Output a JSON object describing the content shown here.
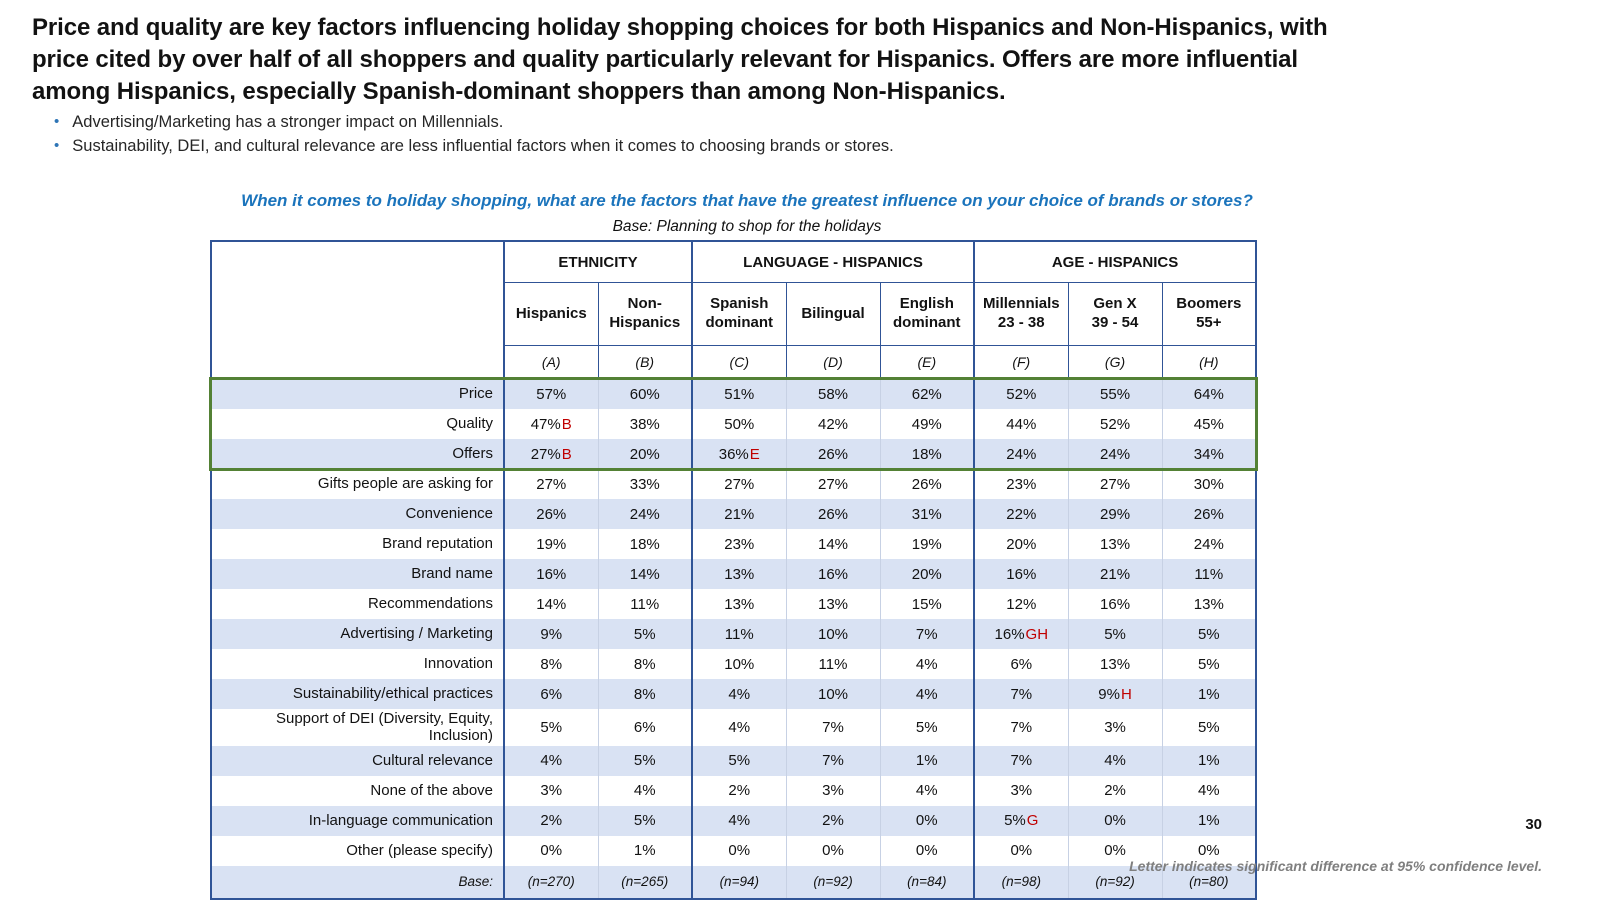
{
  "slide": {
    "title": "Price and quality are key factors influencing holiday shopping choices for both Hispanics and Non-Hispanics, with price cited by over half of all shoppers and quality particularly relevant for Hispanics. Offers are more influential among Hispanics, especially Spanish-dominant shoppers than among Non-Hispanics.",
    "bullets": [
      "Advertising/Marketing has a stronger impact on Millennials.",
      "Sustainability, DEI, and cultural relevance are less influential factors when it comes to choosing brands or stores."
    ],
    "question": "When it comes to holiday shopping, what are the factors that have the greatest influence on your choice of brands or stores?",
    "base_note": "Base: Planning to shop for the holidays",
    "page_number": "30",
    "footnote": "Letter indicates significant difference at 95% confidence level."
  },
  "colors": {
    "question_blue": "#1b74bc",
    "bullet_blue": "#2e75b6",
    "table_border_blue": "#305496",
    "row_stripe": "#d9e2f3",
    "highlight_green": "#538135",
    "sig_red": "#c00000"
  },
  "chart_data": {
    "type": "table",
    "title": "When it comes to holiday shopping, what are the factors that have the greatest influence on your choice of brands or stores?",
    "base": "Planning to shop for the holidays",
    "column_groups": [
      {
        "label": "ETHNICITY",
        "span": 2
      },
      {
        "label": "LANGUAGE - HISPANICS",
        "span": 3
      },
      {
        "label": "AGE - HISPANICS",
        "span": 3
      }
    ],
    "columns": [
      {
        "label": "Hispanics",
        "letter": "(A)"
      },
      {
        "label": "Non-\nHispanics",
        "letter": "(B)"
      },
      {
        "label": "Spanish\ndominant",
        "letter": "(C)"
      },
      {
        "label": "Bilingual",
        "letter": "(D)"
      },
      {
        "label": "English\ndominant",
        "letter": "(E)"
      },
      {
        "label": "Millennials\n23 - 38",
        "letter": "(F)"
      },
      {
        "label": "Gen X\n39 - 54",
        "letter": "(G)"
      },
      {
        "label": "Boomers\n55+",
        "letter": "(H)"
      }
    ],
    "highlighted_rows": [
      "Price",
      "Quality",
      "Offers"
    ],
    "rows": [
      {
        "label": "Price",
        "values": [
          "57%",
          "60%",
          "51%",
          "58%",
          "62%",
          "52%",
          "55%",
          "64%"
        ],
        "sigs": [
          "",
          "",
          "",
          "",
          "",
          "",
          "",
          ""
        ]
      },
      {
        "label": "Quality",
        "values": [
          "47%",
          "38%",
          "50%",
          "42%",
          "49%",
          "44%",
          "52%",
          "45%"
        ],
        "sigs": [
          "B",
          "",
          "",
          "",
          "",
          "",
          "",
          ""
        ]
      },
      {
        "label": "Offers",
        "values": [
          "27%",
          "20%",
          "36%",
          "26%",
          "18%",
          "24%",
          "24%",
          "34%"
        ],
        "sigs": [
          "B",
          "",
          "E",
          "",
          "",
          "",
          "",
          ""
        ]
      },
      {
        "label": "Gifts people are asking for",
        "values": [
          "27%",
          "33%",
          "27%",
          "27%",
          "26%",
          "23%",
          "27%",
          "30%"
        ],
        "sigs": [
          "",
          "",
          "",
          "",
          "",
          "",
          "",
          ""
        ]
      },
      {
        "label": "Convenience",
        "values": [
          "26%",
          "24%",
          "21%",
          "26%",
          "31%",
          "22%",
          "29%",
          "26%"
        ],
        "sigs": [
          "",
          "",
          "",
          "",
          "",
          "",
          "",
          ""
        ]
      },
      {
        "label": "Brand reputation",
        "values": [
          "19%",
          "18%",
          "23%",
          "14%",
          "19%",
          "20%",
          "13%",
          "24%"
        ],
        "sigs": [
          "",
          "",
          "",
          "",
          "",
          "",
          "",
          ""
        ]
      },
      {
        "label": "Brand name",
        "values": [
          "16%",
          "14%",
          "13%",
          "16%",
          "20%",
          "16%",
          "21%",
          "11%"
        ],
        "sigs": [
          "",
          "",
          "",
          "",
          "",
          "",
          "",
          ""
        ]
      },
      {
        "label": "Recommendations",
        "values": [
          "14%",
          "11%",
          "13%",
          "13%",
          "15%",
          "12%",
          "16%",
          "13%"
        ],
        "sigs": [
          "",
          "",
          "",
          "",
          "",
          "",
          "",
          ""
        ]
      },
      {
        "label": "Advertising / Marketing",
        "values": [
          "9%",
          "5%",
          "11%",
          "10%",
          "7%",
          "16%",
          "5%",
          "5%"
        ],
        "sigs": [
          "",
          "",
          "",
          "",
          "",
          "GH",
          "",
          ""
        ]
      },
      {
        "label": "Innovation",
        "values": [
          "8%",
          "8%",
          "10%",
          "11%",
          "4%",
          "6%",
          "13%",
          "5%"
        ],
        "sigs": [
          "",
          "",
          "",
          "",
          "",
          "",
          "",
          ""
        ]
      },
      {
        "label": "Sustainability/ethical practices",
        "values": [
          "6%",
          "8%",
          "4%",
          "10%",
          "4%",
          "7%",
          "9%",
          "1%"
        ],
        "sigs": [
          "",
          "",
          "",
          "",
          "",
          "",
          "H",
          ""
        ]
      },
      {
        "label": "Support of DEI (Diversity, Equity, Inclusion)",
        "values": [
          "5%",
          "6%",
          "4%",
          "7%",
          "5%",
          "7%",
          "3%",
          "5%"
        ],
        "sigs": [
          "",
          "",
          "",
          "",
          "",
          "",
          "",
          ""
        ]
      },
      {
        "label": "Cultural relevance",
        "values": [
          "4%",
          "5%",
          "5%",
          "7%",
          "1%",
          "7%",
          "4%",
          "1%"
        ],
        "sigs": [
          "",
          "",
          "",
          "",
          "",
          "",
          "",
          ""
        ]
      },
      {
        "label": "None of the above",
        "values": [
          "3%",
          "4%",
          "2%",
          "3%",
          "4%",
          "3%",
          "2%",
          "4%"
        ],
        "sigs": [
          "",
          "",
          "",
          "",
          "",
          "",
          "",
          ""
        ]
      },
      {
        "label": "In-language communication",
        "values": [
          "2%",
          "5%",
          "4%",
          "2%",
          "0%",
          "5%",
          "0%",
          "1%"
        ],
        "sigs": [
          "",
          "",
          "",
          "",
          "",
          "G",
          "",
          ""
        ]
      },
      {
        "label": "Other (please specify)",
        "values": [
          "0%",
          "1%",
          "0%",
          "0%",
          "0%",
          "0%",
          "0%",
          "0%"
        ],
        "sigs": [
          "",
          "",
          "",
          "",
          "",
          "",
          "",
          ""
        ]
      }
    ],
    "base_row": {
      "label": "Base:",
      "values": [
        "(n=270)",
        "(n=265)",
        "(n=94)",
        "(n=92)",
        "(n=84)",
        "(n=98)",
        "(n=92)",
        "(n=80)"
      ]
    }
  }
}
